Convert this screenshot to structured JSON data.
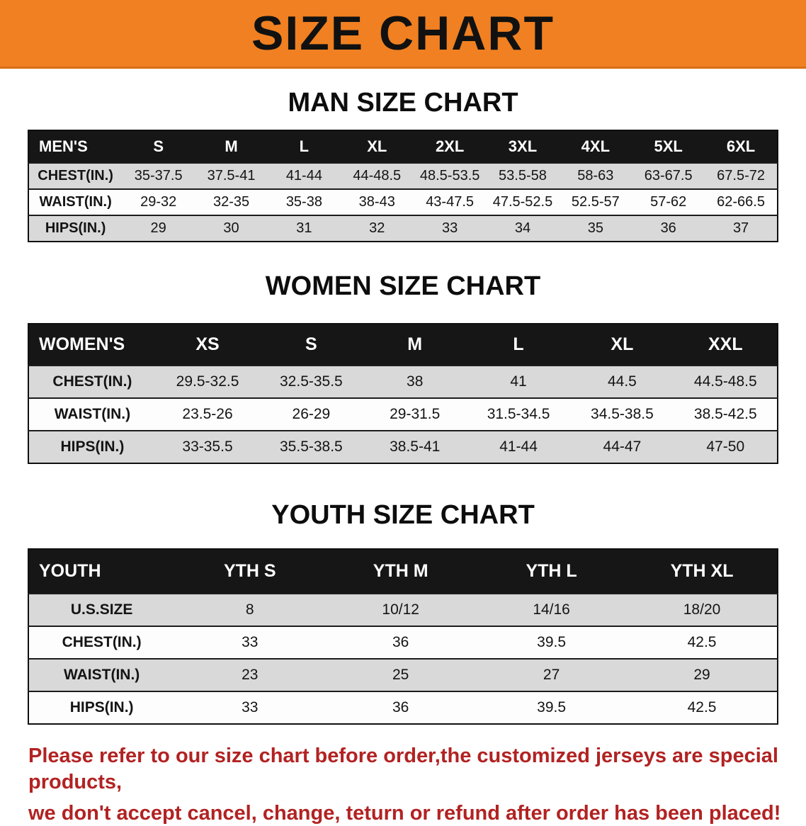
{
  "colors": {
    "banner_bg": "#f08021",
    "banner_text": "#111111",
    "table_header_bg": "#161616",
    "table_header_text": "#ffffff",
    "row_stripe": "#d9d9d9",
    "footer_text": "#b22222"
  },
  "banner": {
    "title": "SIZE CHART"
  },
  "sections": [
    {
      "heading": "MAN SIZE CHART",
      "table": {
        "corner_label": "MEN'S",
        "columns": [
          "S",
          "M",
          "L",
          "XL",
          "2XL",
          "3XL",
          "4XL",
          "5XL",
          "6XL"
        ],
        "rows": [
          {
            "label": "CHEST(IN.)",
            "values": [
              "35-37.5",
              "37.5-41",
              "41-44",
              "44-48.5",
              "48.5-53.5",
              "53.5-58",
              "58-63",
              "63-67.5",
              "67.5-72"
            ]
          },
          {
            "label": "WAIST(IN.)",
            "values": [
              "29-32",
              "32-35",
              "35-38",
              "38-43",
              "43-47.5",
              "47.5-52.5",
              "52.5-57",
              "57-62",
              "62-66.5"
            ]
          },
          {
            "label": "HIPS(IN.)",
            "values": [
              "29",
              "30",
              "31",
              "32",
              "33",
              "34",
              "35",
              "36",
              "37"
            ]
          }
        ]
      }
    },
    {
      "heading": "WOMEN SIZE CHART",
      "table": {
        "corner_label": "WOMEN'S",
        "columns": [
          "XS",
          "S",
          "M",
          "L",
          "XL",
          "XXL"
        ],
        "rows": [
          {
            "label": "CHEST(IN.)",
            "values": [
              "29.5-32.5",
              "32.5-35.5",
              "38",
              "41",
              "44.5",
              "44.5-48.5"
            ]
          },
          {
            "label": "WAIST(IN.)",
            "values": [
              "23.5-26",
              "26-29",
              "29-31.5",
              "31.5-34.5",
              "34.5-38.5",
              "38.5-42.5"
            ]
          },
          {
            "label": "HIPS(IN.)",
            "values": [
              "33-35.5",
              "35.5-38.5",
              "38.5-41",
              "41-44",
              "44-47",
              "47-50"
            ]
          }
        ]
      }
    },
    {
      "heading": "YOUTH SIZE CHART",
      "table": {
        "corner_label": "YOUTH",
        "columns": [
          "YTH S",
          "YTH M",
          "YTH L",
          "YTH XL"
        ],
        "rows": [
          {
            "label": "U.S.SIZE",
            "values": [
              "8",
              "10/12",
              "14/16",
              "18/20"
            ]
          },
          {
            "label": "CHEST(IN.)",
            "values": [
              "33",
              "36",
              "39.5",
              "42.5"
            ]
          },
          {
            "label": "WAIST(IN.)",
            "values": [
              "23",
              "25",
              "27",
              "29"
            ]
          },
          {
            "label": "HIPS(IN.)",
            "values": [
              "33",
              "36",
              "39.5",
              "42.5"
            ]
          }
        ]
      }
    }
  ],
  "footer": {
    "lines": [
      "Please refer to our size chart before order,the customized jerseys are special products,",
      "we don't accept cancel, change, teturn or refund after order has been placed!"
    ]
  }
}
